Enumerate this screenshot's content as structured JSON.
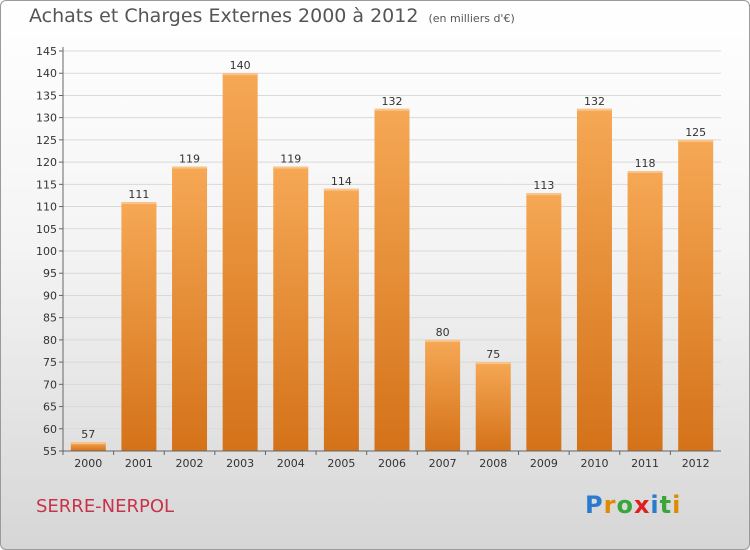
{
  "title": "Achats et Charges Externes 2000 à 2012",
  "subtitle": "(en milliers d'€)",
  "commune": "SERRE-NERPOL",
  "logo": {
    "letters": [
      "P",
      "r",
      "o",
      "x",
      "i",
      "t",
      "i"
    ],
    "colors": [
      "#2a7bd0",
      "#e08a00",
      "#3aa63a",
      "#e02020",
      "#2a7bd0",
      "#3aa63a",
      "#e08a00"
    ]
  },
  "colors": {
    "bar_light": "#f6a855",
    "bar_dark": "#d47219",
    "axis": "#666666",
    "grid": "#d9d9d9",
    "title": "#555555",
    "commune": "#c8334a"
  },
  "chart_data": {
    "type": "bar",
    "title": "Achats et Charges Externes 2000 à 2012",
    "categories": [
      "2000",
      "2001",
      "2002",
      "2003",
      "2004",
      "2005",
      "2006",
      "2007",
      "2008",
      "2009",
      "2010",
      "2011",
      "2012"
    ],
    "values": [
      57,
      111,
      119,
      140,
      119,
      114,
      132,
      80,
      75,
      113,
      132,
      118,
      125
    ],
    "ylim": [
      55,
      145
    ],
    "yticks": [
      55,
      60,
      65,
      70,
      75,
      80,
      85,
      90,
      95,
      100,
      105,
      110,
      115,
      120,
      125,
      130,
      135,
      140,
      145
    ],
    "grid": true
  }
}
